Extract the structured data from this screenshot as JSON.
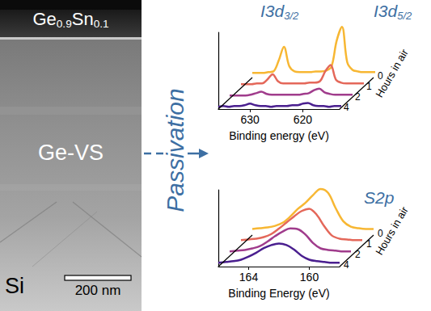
{
  "tem": {
    "layers": [
      {
        "parts": [
          {
            "text": "Ge"
          },
          {
            "text": "0.9",
            "sub": true
          },
          {
            "text": "Sn"
          },
          {
            "text": "0.1",
            "sub": true
          }
        ]
      },
      {
        "parts": [
          {
            "text": "Ge-VS"
          }
        ]
      },
      {
        "parts": [
          {
            "text": "Si"
          }
        ]
      }
    ],
    "scale_bar": "200 nm"
  },
  "arrow_label": "Passivation",
  "chart_data": [
    {
      "type": "line",
      "annotations": [
        {
          "parts": [
            {
              "text": "I3d"
            },
            {
              "text": "3/2",
              "sub": true
            }
          ]
        },
        {
          "parts": [
            {
              "text": "I3d"
            },
            {
              "text": "5/2",
              "sub": true
            }
          ]
        }
      ],
      "xlabel": "Binding energy (eV)",
      "zlabel": "Hours in air",
      "x": [
        636,
        635,
        634,
        633,
        632,
        631,
        630,
        629,
        628,
        627,
        626,
        625,
        624,
        623,
        622,
        621,
        620,
        619,
        618,
        617,
        616,
        615,
        614,
        613,
        612
      ],
      "xlim": [
        636,
        613
      ],
      "xticks": [
        630,
        620
      ],
      "ylim": [
        0,
        100
      ],
      "yticks": [],
      "tick_labels": "x",
      "grid": false,
      "series": [
        {
          "name": "0",
          "color": "#f7b733",
          "values": [
            6,
            6,
            6,
            7,
            8,
            22,
            40,
            15,
            8,
            7,
            7,
            7,
            8,
            8,
            9,
            14,
            48,
            66,
            20,
            10,
            8,
            7,
            7,
            7,
            7
          ]
        },
        {
          "name": "1",
          "color": "#e4685a",
          "values": [
            5,
            5,
            5,
            6,
            6,
            11,
            18,
            9,
            6,
            6,
            6,
            6,
            6,
            7,
            7,
            9,
            22,
            30,
            11,
            7,
            6,
            6,
            6,
            6,
            6
          ]
        },
        {
          "name": "2",
          "color": "#a03c8c",
          "values": [
            4,
            4,
            4,
            4,
            5,
            7,
            9,
            6,
            5,
            5,
            5,
            5,
            5,
            5,
            6,
            7,
            11,
            13,
            8,
            6,
            5,
            5,
            5,
            5,
            5
          ]
        },
        {
          "name": "4",
          "color": "#4a1f8f",
          "values": [
            3,
            4,
            3,
            4,
            4,
            5,
            7,
            5,
            4,
            4,
            3,
            4,
            4,
            4,
            5,
            5,
            7,
            8,
            5,
            4,
            4,
            3,
            4,
            4,
            3
          ]
        }
      ]
    },
    {
      "type": "line",
      "annotations": [
        {
          "parts": [
            {
              "text": "S2p"
            }
          ]
        }
      ],
      "xlabel": "Binding Energy (eV)",
      "zlabel": "Hours in air",
      "x": [
        166,
        165.5,
        165,
        164.5,
        164,
        163.5,
        163,
        162.5,
        162,
        161.5,
        161,
        160.5,
        160,
        159.5,
        159,
        158.5,
        158
      ],
      "xlim": [
        166,
        158
      ],
      "xticks": [
        164,
        160
      ],
      "ylim": [
        0,
        100
      ],
      "yticks": [],
      "tick_labels": "x",
      "grid": false,
      "series": [
        {
          "name": "0",
          "color": "#f7b733",
          "values": [
            8,
            9,
            10,
            12,
            16,
            24,
            34,
            42,
            52,
            60,
            55,
            35,
            18,
            11,
            9,
            8,
            8
          ]
        },
        {
          "name": "1",
          "color": "#e4685a",
          "values": [
            7,
            8,
            9,
            11,
            15,
            22,
            30,
            38,
            45,
            48,
            40,
            25,
            13,
            9,
            8,
            7,
            7
          ]
        },
        {
          "name": "2",
          "color": "#a03c8c",
          "values": [
            6,
            7,
            8,
            10,
            13,
            19,
            26,
            32,
            36,
            35,
            28,
            17,
            10,
            8,
            7,
            6,
            6
          ]
        },
        {
          "name": "4",
          "color": "#4a1f8f",
          "values": [
            5,
            6,
            7,
            9,
            13,
            18,
            24,
            28,
            30,
            28,
            22,
            14,
            9,
            7,
            6,
            5,
            5
          ]
        }
      ]
    }
  ]
}
